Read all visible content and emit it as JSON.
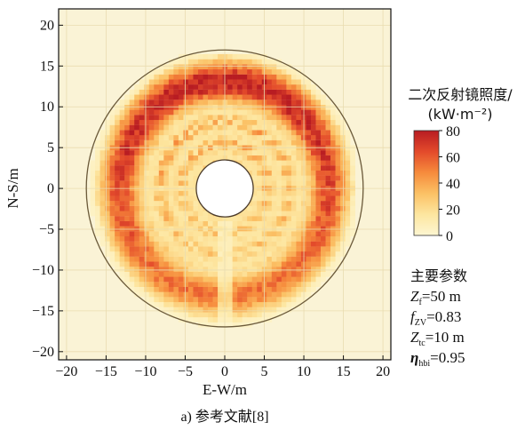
{
  "chart_data": {
    "type": "heatmap",
    "title": "",
    "xlabel": "E-W/m",
    "ylabel": "N-S/m",
    "xlim": [
      -21,
      21
    ],
    "ylim": [
      -21,
      22
    ],
    "xticks": [
      -20,
      -15,
      -10,
      -5,
      0,
      5,
      10,
      15,
      20
    ],
    "yticks": [
      -20,
      -15,
      -10,
      -5,
      0,
      5,
      10,
      15,
      20
    ],
    "xtick_labels": [
      "−20",
      "−15",
      "−10",
      "−5",
      "0",
      "5",
      "10",
      "15",
      "20"
    ],
    "ytick_labels": [
      "−20",
      "−15",
      "−10",
      "−5",
      "0",
      "5",
      "10",
      "15",
      "20"
    ],
    "outer_circle_radius": 17.5,
    "inner_circle_radius": 3.6,
    "field_radius_min": 1.5,
    "field_radius_max": 16.7,
    "peak_value_north": 80,
    "peak_value_south": 52,
    "colorbar": {
      "title_line1": "二次反射镜照度/",
      "title_line2": "(kW·m⁻²)",
      "min": 0,
      "max": 80,
      "ticks": [
        0,
        20,
        40,
        60,
        80
      ],
      "tick_labels": [
        "0",
        "20",
        "40",
        "60",
        "80"
      ],
      "colors": [
        "#fdf6d2",
        "#fde6a0",
        "#fbc165",
        "#f68b3c",
        "#e34a2b",
        "#b81c22"
      ]
    },
    "background_color": "#faf3d6"
  },
  "params": {
    "heading": "主要参数",
    "items": [
      {
        "sym": "Z",
        "sub": "f",
        "val": "=50 m"
      },
      {
        "sym": "f",
        "sub": "ZV",
        "val": "=0.83"
      },
      {
        "sym": "Z",
        "sub": "tc",
        "val": "=10 m"
      },
      {
        "sym": "η",
        "sub": "hbi",
        "val": "=0.95"
      }
    ]
  },
  "caption": "a) 参考文献[8]"
}
